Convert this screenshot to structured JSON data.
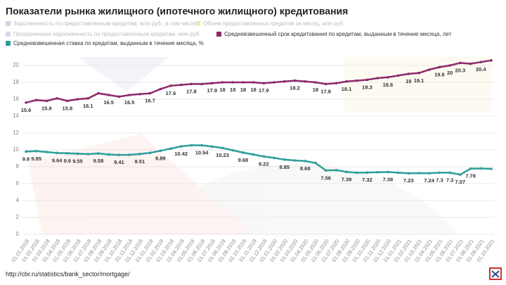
{
  "chart_data": {
    "type": "line",
    "title": "Показатели рынка жилищного (ипотечного жилищного) кредитования",
    "source": "http://cbr.ru/statistics/bank_sector/mortgage/",
    "legend_hidden": [
      {
        "name": "Задолженность по предоставленным кредитам, млн руб., в том числе",
        "color": "#c9d6e3"
      },
      {
        "name": "Объем предоставленных кредитов за месяц, млн руб.",
        "color": "#f3e7b9"
      },
      {
        "name": "Просроченная задолженность по предоставленным кредитам, млн руб.",
        "color": "#d8d8e8"
      }
    ],
    "categories": [
      "01.01.2018",
      "01.02.2018",
      "01.03.2018",
      "01.04.2018",
      "01.05.2018",
      "01.06.2018",
      "01.07.2018",
      "01.08.2018",
      "01.09.2018",
      "01.10.2018",
      "01.11.2018",
      "01.12.2018",
      "01.01.2019",
      "01.02.2019",
      "01.03.2019",
      "01.04.2019",
      "01.05.2019",
      "01.06.2019",
      "01.07.2019",
      "01.08.2019",
      "01.09.2019",
      "01.10.2019",
      "01.11.2019",
      "01.12.2019",
      "01.01.2020",
      "01.02.2020",
      "01.03.2020",
      "01.04.2020",
      "01.05.2020",
      "01.06.2020",
      "01.07.2020",
      "01.08.2020",
      "01.09.2020",
      "01.10.2020",
      "01.11.2020",
      "01.12.2020",
      "01.01.2021",
      "01.02.2021",
      "01.03.2021",
      "01.04.2021",
      "01.05.2021",
      "01.06.2021",
      "01.07.2021",
      "01.08.2021",
      "01.09.2021",
      "01.10.2021"
    ],
    "series": [
      {
        "name": "Средневзвешенный срок кредитования по кредитам, выданным в течение месяца, лет",
        "color": "#8b2a6b",
        "values": [
          15.6,
          15.9,
          15.8,
          16.1,
          15.8,
          16.0,
          16.1,
          16.7,
          16.5,
          16.3,
          16.5,
          16.6,
          16.7,
          17.2,
          17.6,
          17.7,
          17.8,
          17.8,
          17.9,
          18,
          18,
          18,
          18,
          17.9,
          18.0,
          18.1,
          18.2,
          18.1,
          18,
          17.8,
          17.9,
          18.1,
          18.2,
          18.3,
          18.5,
          18.6,
          18.8,
          19,
          19.1,
          19.5,
          19.8,
          20,
          20.3,
          20.2,
          20.4,
          20.6
        ],
        "value_labels": [
          "15.6",
          null,
          "15.8",
          null,
          "15.8",
          null,
          "16.1",
          null,
          "16.5",
          null,
          "16.5",
          null,
          "16.7",
          null,
          "17.6",
          null,
          "17.8",
          null,
          "17.9",
          "18",
          "18",
          "18",
          "18",
          "17.9",
          null,
          null,
          "18.2",
          null,
          "18",
          "17.8",
          null,
          "18.1",
          null,
          "18.3",
          null,
          "18.6",
          null,
          "19",
          "19.1",
          null,
          "19.8",
          "20",
          "20.3",
          null,
          "20.4",
          null
        ]
      },
      {
        "name": "Средневзвешенная ставка по кредитам, выданным в течение месяца, %",
        "color": "#2e9e9a",
        "values": [
          9.8,
          9.85,
          9.75,
          9.64,
          9.6,
          9.55,
          9.5,
          9.58,
          9.45,
          9.41,
          9.42,
          9.51,
          9.65,
          9.89,
          10.15,
          10.42,
          10.55,
          10.54,
          10.4,
          10.23,
          9.95,
          9.68,
          9.45,
          9.22,
          9.05,
          8.85,
          8.75,
          8.68,
          8.45,
          7.56,
          7.6,
          7.39,
          7.3,
          7.32,
          7.35,
          7.38,
          7.3,
          7.23,
          7.25,
          7.24,
          7.3,
          7.3,
          7.07,
          7.78,
          7.8,
          7.75
        ],
        "value_labels": [
          "9.8",
          "9.85",
          null,
          "9.64",
          "9.6",
          "9.55",
          null,
          "9.58",
          null,
          "9.41",
          null,
          "9.51",
          null,
          "9.89",
          null,
          "10.42",
          null,
          "10.54",
          null,
          "10.23",
          null,
          "9.68",
          null,
          "9.22",
          null,
          "8.85",
          null,
          "8.68",
          null,
          "7.56",
          null,
          "7.39",
          null,
          "7.32",
          null,
          "7.38",
          null,
          "7.23",
          null,
          "7.24",
          "7.3",
          "7.3",
          "7.07",
          "7.78",
          null,
          null
        ]
      }
    ],
    "ylim": [
      0,
      21
    ],
    "yticks": [
      0,
      2,
      4,
      6,
      8,
      10,
      12,
      14,
      16,
      18,
      20
    ],
    "grid": true
  }
}
